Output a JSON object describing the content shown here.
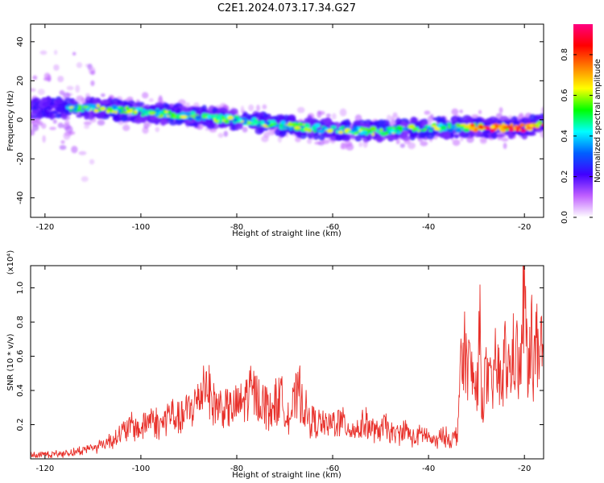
{
  "title": "C2E1.2024.073.17.34.G27",
  "chart_data": [
    {
      "type": "heatmap",
      "xlabel": "Height of straight line (km)",
      "ylabel": "Frequency (Hz)",
      "xlim": [
        -123,
        -16
      ],
      "ylim": [
        -50,
        49
      ],
      "xticks": [
        -120,
        -100,
        -80,
        -60,
        -40,
        -20
      ],
      "yticks": [
        -40,
        -20,
        0,
        20,
        40
      ],
      "ridge_center": {
        "x": [
          -123,
          -110,
          -100,
          -90,
          -80,
          -70,
          -60,
          -50,
          -40,
          -30,
          -20,
          -16
        ],
        "y": [
          6,
          6,
          4,
          2,
          0,
          -3,
          -5,
          -6,
          -4,
          -4,
          -4,
          -2
        ]
      },
      "colorbar": {
        "label": "Normalized spectral amplitude",
        "ticks": [
          0.0,
          0.2,
          0.4,
          0.6,
          0.8
        ],
        "range": [
          0.0,
          0.95
        ],
        "colors": [
          "#ffffff",
          "#c060ff",
          "#4000ff",
          "#0060ff",
          "#00ffff",
          "#00ff00",
          "#ffff00",
          "#ff8000",
          "#ff0000",
          "#ff0080"
        ]
      }
    },
    {
      "type": "line",
      "xlabel": "Height of straight line (km)",
      "ylabel": "SNR (10 * v/v)",
      "scale_label": "(x10⁴)",
      "xlim": [
        -123,
        -16
      ],
      "ylim": [
        0.0,
        1.13
      ],
      "xticks": [
        -120,
        -100,
        -80,
        -60,
        -40,
        -20
      ],
      "yticks": [
        0.2,
        0.4,
        0.6,
        0.8,
        1.0
      ],
      "color": "#e8302a",
      "x": [
        -123,
        -118,
        -114,
        -110,
        -108,
        -106,
        -104,
        -102,
        -100,
        -98,
        -96,
        -94,
        -92,
        -90,
        -88,
        -86.5,
        -85,
        -83,
        -81,
        -79,
        -77,
        -75,
        -73,
        -71,
        -69,
        -67,
        -65,
        -63,
        -61,
        -59,
        -57,
        -55,
        -53,
        -51,
        -49,
        -47,
        -45,
        -43,
        -41,
        -39,
        -37,
        -35,
        -34,
        -33.5,
        -33,
        -32.5,
        -31,
        -30,
        -29.3,
        -29,
        -28,
        -27,
        -26,
        -25,
        -24,
        -23,
        -22,
        -21,
        -20.5,
        -20,
        -19.5,
        -19,
        -18.5,
        -18,
        -17.5,
        -17,
        -16.5,
        -16
      ],
      "y": [
        0.02,
        0.03,
        0.04,
        0.07,
        0.09,
        0.12,
        0.16,
        0.2,
        0.18,
        0.26,
        0.2,
        0.28,
        0.24,
        0.3,
        0.36,
        0.5,
        0.34,
        0.32,
        0.3,
        0.34,
        0.42,
        0.36,
        0.3,
        0.38,
        0.26,
        0.42,
        0.24,
        0.22,
        0.2,
        0.24,
        0.2,
        0.18,
        0.22,
        0.16,
        0.2,
        0.14,
        0.18,
        0.12,
        0.16,
        0.1,
        0.14,
        0.12,
        0.15,
        0.5,
        0.56,
        0.65,
        0.52,
        0.4,
        0.82,
        0.36,
        0.5,
        0.42,
        0.58,
        0.48,
        0.62,
        0.52,
        0.7,
        0.5,
        0.74,
        1.12,
        0.62,
        0.52,
        0.8,
        0.6,
        0.74,
        0.5,
        0.66,
        0.55
      ]
    }
  ]
}
